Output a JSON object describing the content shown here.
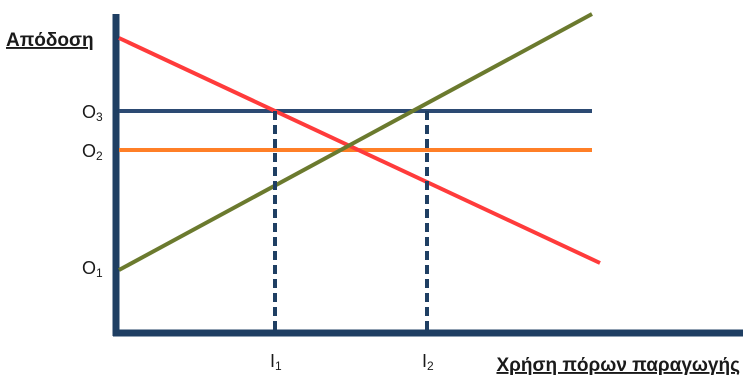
{
  "diagram": {
    "y_axis_title": "Απόδοση",
    "x_axis_title": "Χρήση πόρων παραγωγής",
    "y_ticks": [
      {
        "main": "O",
        "sub": "3"
      },
      {
        "main": "O",
        "sub": "2"
      },
      {
        "main": "O",
        "sub": "1"
      }
    ],
    "x_ticks": [
      {
        "main": "I",
        "sub": "1"
      },
      {
        "main": "I",
        "sub": "2"
      }
    ],
    "colors": {
      "axis": "#1f3f63",
      "rising_line": "#6b7a2e",
      "falling_line": "#ff3b3b",
      "o2_line": "#ff7f27",
      "o3_line": "#2c4a73",
      "guide": "#1f3f63"
    }
  }
}
